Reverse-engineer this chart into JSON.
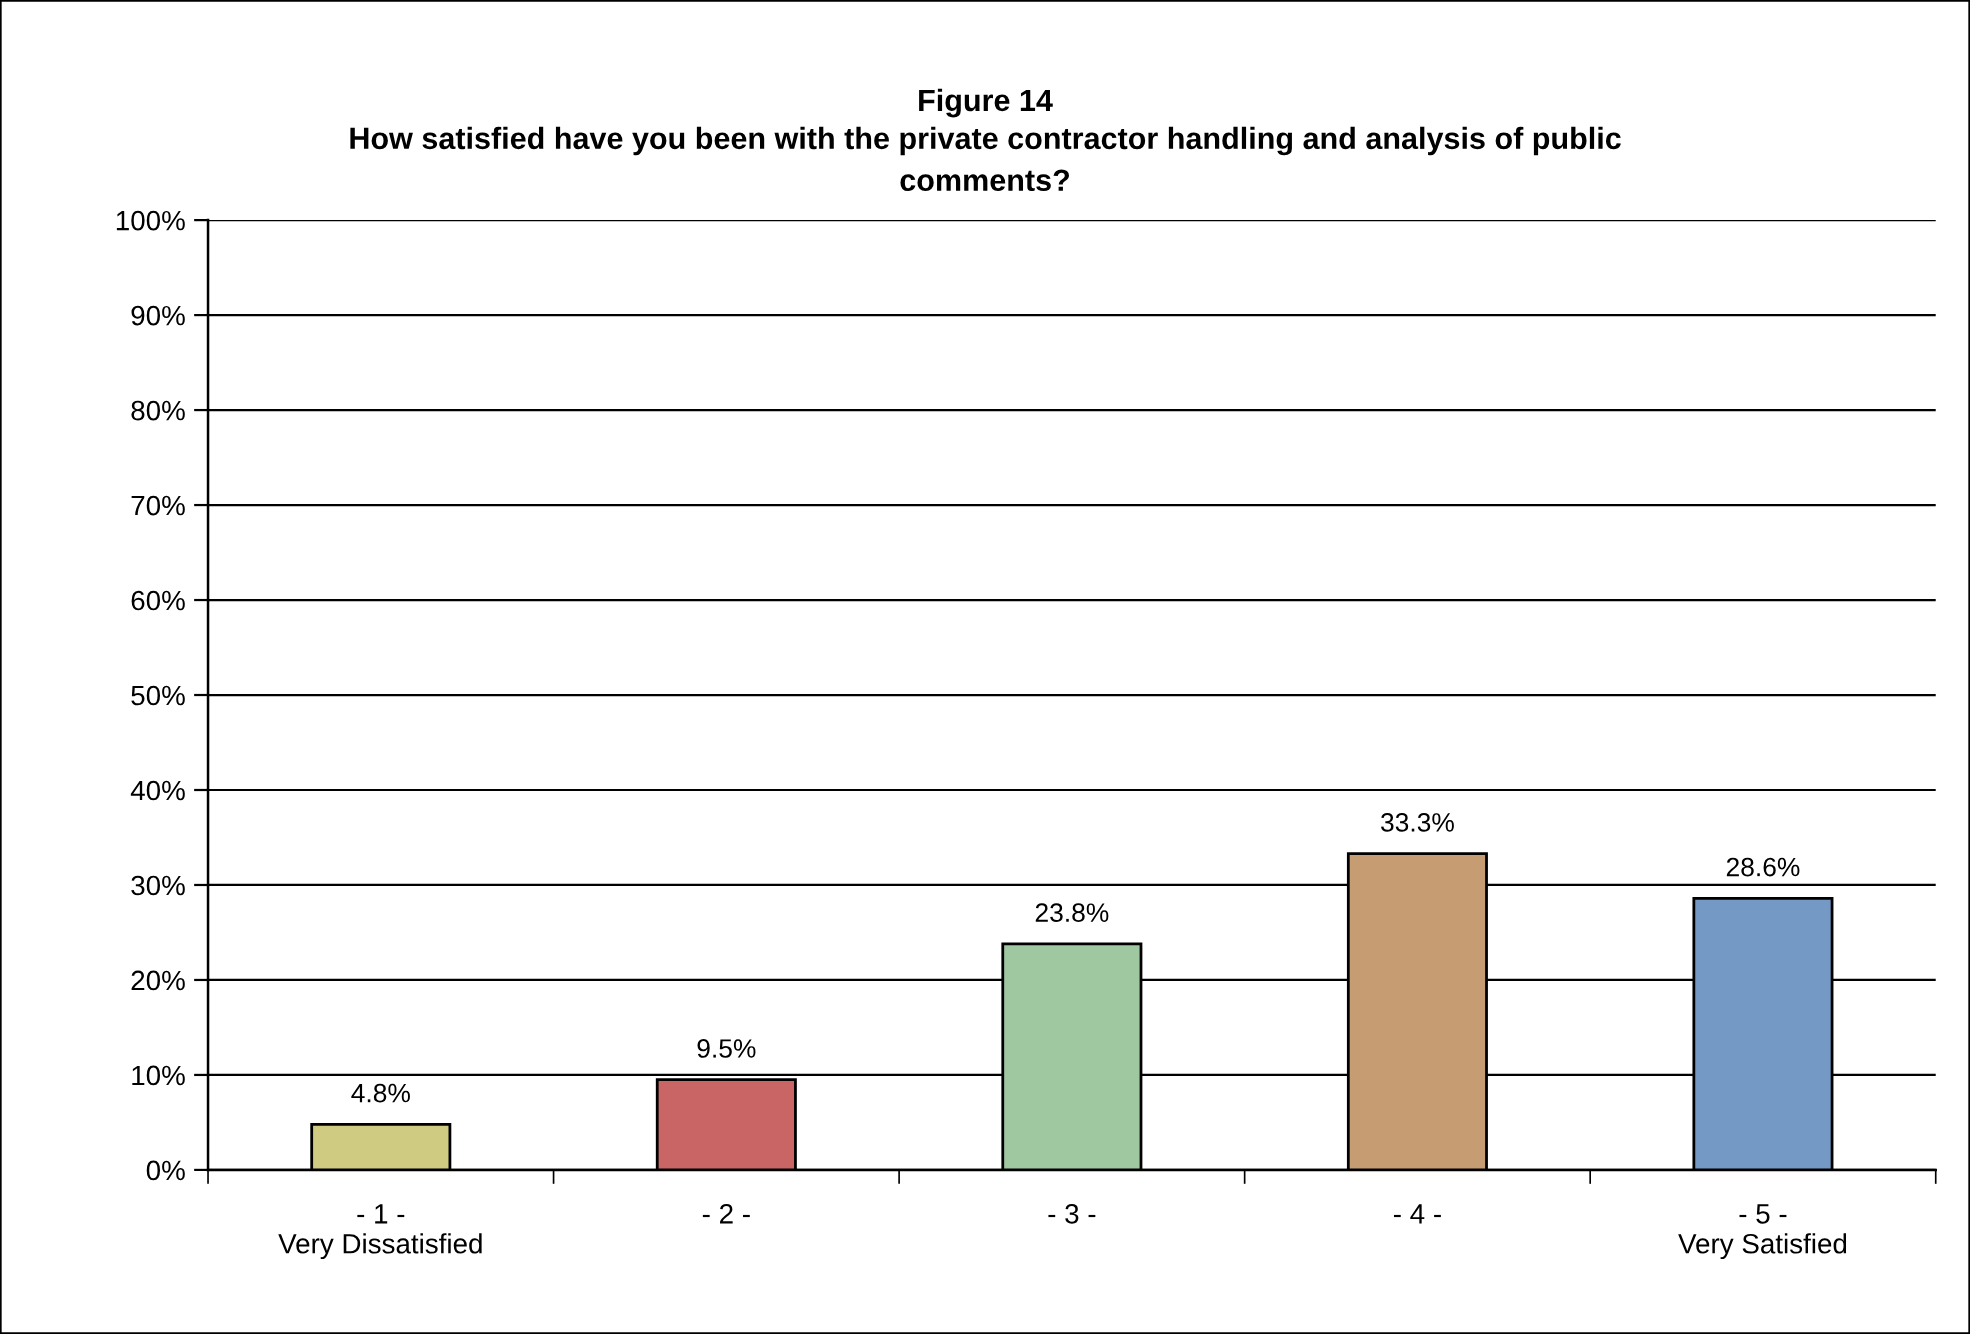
{
  "chart_data": {
    "type": "bar",
    "title": "Figure 14",
    "subtitle": "How satisfied have you been with the private contractor handling and analysis of public\ncomments?",
    "categories": [
      "- 1 -\nVery Dissatisfied",
      "- 2 -",
      "- 3 -",
      "- 4 -",
      "- 5 -\nVery Satisfied"
    ],
    "values": [
      4.8,
      9.5,
      23.8,
      33.3,
      28.6
    ],
    "value_labels": [
      "4.8%",
      "9.5%",
      "23.8%",
      "33.3%",
      "28.6%"
    ],
    "colors": [
      "#cfcb80",
      "#c96565",
      "#a0c8a0",
      "#c69c72",
      "#7499c4"
    ],
    "ylim": [
      0,
      100
    ],
    "yticks": [
      {
        "value": 0,
        "label": "0%"
      },
      {
        "value": 10,
        "label": "10%"
      },
      {
        "value": 20,
        "label": "20%"
      },
      {
        "value": 30,
        "label": "30%"
      },
      {
        "value": 40,
        "label": "40%"
      },
      {
        "value": 50,
        "label": "50%"
      },
      {
        "value": 60,
        "label": "60%"
      },
      {
        "value": 70,
        "label": "70%"
      },
      {
        "value": 80,
        "label": "80%"
      },
      {
        "value": 90,
        "label": "90%"
      },
      {
        "value": 100,
        "label": "100%"
      }
    ],
    "grid": "y",
    "legend": false
  }
}
